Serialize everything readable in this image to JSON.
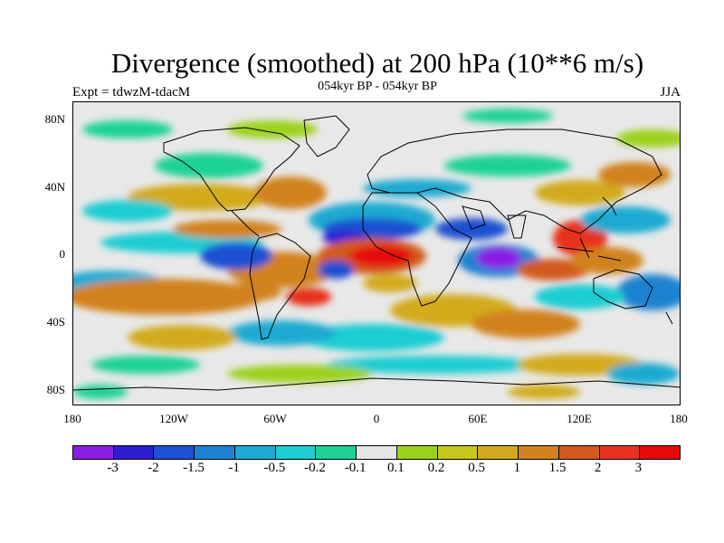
{
  "title": "Divergence (smoothed) at 200 hPa (10**6 m/s)",
  "subtitle": "054kyr BP - 054kyr BP",
  "experiment_label": "Expt = tdwzM-tdacM",
  "season_label": "JJA",
  "lat_ticks": [
    "80N",
    "40N",
    "0",
    "40S",
    "80S"
  ],
  "lon_ticks": [
    "180",
    "120W",
    "60W",
    "0",
    "60E",
    "120E",
    "180"
  ],
  "legend": {
    "colors": [
      "#8b1ee6",
      "#2d1ed2",
      "#1e50d2",
      "#1e82d2",
      "#1eaad2",
      "#1ecdd2",
      "#1ed296",
      "#e6e6e6",
      "#9bd21e",
      "#c8c81e",
      "#d2aa1e",
      "#d2821e",
      "#d25a1e",
      "#e6321e",
      "#e60a0a"
    ],
    "labels": [
      "-3",
      "-2",
      "-1.5",
      "-1",
      "-0.5",
      "-0.2",
      "-0.1",
      "0.1",
      "0.2",
      "0.5",
      "1",
      "1.5",
      "2",
      "3"
    ]
  },
  "colors": {
    "neutral": "#e8e8e8",
    "coast": "#000000"
  }
}
